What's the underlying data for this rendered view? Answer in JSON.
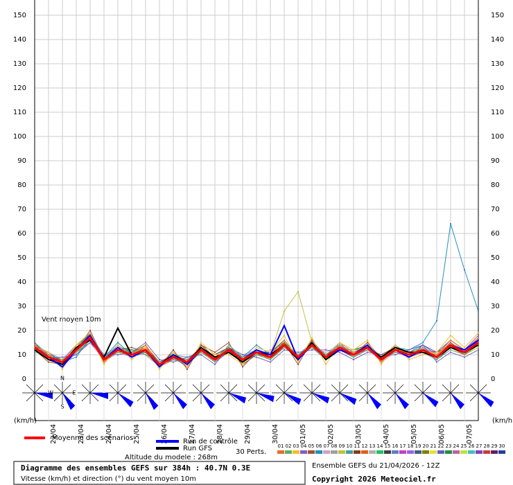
{
  "chart_data": {
    "type": "line",
    "annotation": "Vent moyen 10m",
    "y_unit_left": "(km/h)",
    "y_unit_right": "(km/h)",
    "perts_label": "30 Perts.",
    "altitude": "Altitude du modele : 268m",
    "title": "Diagramme des ensembles GEFS sur 384h : 40.7N 0.3E",
    "subtitle": "Vitesse (km/h) et direction (°) du vent moyen 10m",
    "run_info": "Ensemble GEFS du 21/04/2026 - 12Z",
    "copyright": "Copyright 2026 Meteociel.fr",
    "compass": [
      "N",
      "E",
      "S",
      "W"
    ],
    "wind_direction": [
      90,
      135,
      90,
      120,
      135,
      130,
      130,
      105,
      100,
      110,
      105,
      110,
      130,
      130,
      120,
      130,
      120
    ],
    "ylim": [
      0,
      150
    ],
    "yticks": [
      0,
      10,
      20,
      30,
      40,
      50,
      60,
      70,
      80,
      90,
      100,
      110,
      120,
      130,
      140,
      150
    ],
    "grid": true,
    "categories": [
      null,
      "22/04",
      null,
      "23/04",
      null,
      "24/04",
      null,
      "25/04",
      null,
      "26/04",
      null,
      "27/04",
      null,
      "28/04",
      null,
      "29/04",
      null,
      "30/04",
      null,
      "01/05",
      null,
      "02/05",
      null,
      "03/05",
      null,
      "04/05",
      null,
      "05/05",
      null,
      "06/05",
      null,
      "07/05",
      null
    ],
    "series": [
      {
        "name": "Moyenne des scénarios",
        "color": "#ff0000",
        "values": [
          13,
          9,
          7,
          12,
          17,
          8,
          12,
          10,
          12,
          6,
          9,
          7,
          12,
          8,
          12,
          8,
          11,
          9,
          14,
          9,
          14,
          9,
          13,
          10,
          13,
          8,
          12,
          10,
          12,
          9,
          14,
          11,
          15
        ]
      },
      {
        "name": "Run de contrôle",
        "color": "#0000ff",
        "values": [
          13,
          9,
          5,
          12,
          18,
          8,
          13,
          9,
          12,
          5,
          10,
          6,
          12,
          8,
          12,
          8,
          12,
          10,
          22,
          8,
          14,
          9,
          12,
          10,
          14,
          8,
          12,
          9,
          12,
          9,
          14,
          12,
          16
        ]
      },
      {
        "name": "Run GFS",
        "color": "#000000",
        "values": [
          12,
          8,
          6,
          13,
          16,
          9,
          21,
          10,
          12,
          6,
          10,
          7,
          13,
          9,
          11,
          7,
          11,
          10,
          14,
          8,
          15,
          8,
          12,
          10,
          13,
          9,
          13,
          11,
          11,
          9,
          13,
          11,
          14
        ]
      },
      {
        "name": "01",
        "color": "#e07030",
        "values": [
          14,
          10,
          5,
          13,
          18,
          7,
          13,
          9,
          14,
          5,
          10,
          6,
          13,
          9,
          11,
          7,
          12,
          10,
          16,
          8,
          15,
          8,
          12,
          11,
          14,
          7,
          13,
          9,
          11,
          10,
          16,
          12,
          17
        ]
      },
      {
        "name": "02",
        "color": "#60b060",
        "values": [
          12,
          8,
          8,
          11,
          16,
          9,
          11,
          12,
          10,
          7,
          8,
          8,
          11,
          7,
          14,
          9,
          10,
          8,
          13,
          10,
          13,
          10,
          14,
          9,
          12,
          9,
          11,
          11,
          13,
          8,
          12,
          10,
          14
        ]
      },
      {
        "name": "03",
        "color": "#f0c030",
        "values": [
          13,
          11,
          4,
          14,
          19,
          6,
          14,
          8,
          13,
          4,
          11,
          5,
          15,
          10,
          10,
          6,
          13,
          11,
          18,
          7,
          17,
          6,
          15,
          12,
          16,
          6,
          14,
          8,
          10,
          11,
          18,
          13,
          19
        ]
      },
      {
        "name": "04",
        "color": "#8060c0",
        "values": [
          15,
          9,
          9,
          10,
          15,
          10,
          10,
          11,
          15,
          8,
          7,
          9,
          10,
          6,
          13,
          10,
          9,
          7,
          12,
          11,
          12,
          12,
          11,
          8,
          11,
          10,
          10,
          12,
          14,
          7,
          11,
          9,
          12
        ]
      },
      {
        "name": "05",
        "color": "#a05030",
        "values": [
          12,
          7,
          6,
          12,
          20,
          8,
          12,
          13,
          11,
          5,
          12,
          4,
          14,
          11,
          15,
          5,
          11,
          9,
          15,
          6,
          16,
          9,
          13,
          10,
          15,
          8,
          12,
          10,
          12,
          9,
          15,
          10,
          16
        ]
      },
      {
        "name": "06",
        "color": "#2090c0",
        "values": [
          13,
          10,
          7,
          9,
          17,
          9,
          15,
          10,
          12,
          7,
          8,
          7,
          12,
          8,
          11,
          9,
          14,
          10,
          14,
          9,
          14,
          8,
          12,
          11,
          13,
          9,
          13,
          12,
          15,
          24,
          64,
          45,
          28
        ]
      },
      {
        "name": "07",
        "color": "#d0a0c0",
        "values": [
          14,
          11,
          8,
          13,
          16,
          7,
          11,
          9,
          13,
          6,
          10,
          8,
          11,
          9,
          12,
          8,
          10,
          12,
          13,
          10,
          13,
          11,
          14,
          9,
          14,
          7,
          11,
          9,
          13,
          10,
          13,
          12,
          14
        ]
      },
      {
        "name": "08",
        "color": "#a0a0a0",
        "values": [
          12,
          9,
          6,
          11,
          18,
          10,
          13,
          11,
          10,
          5,
          9,
          6,
          13,
          7,
          13,
          10,
          12,
          8,
          16,
          8,
          14,
          10,
          15,
          11,
          12,
          8,
          14,
          10,
          11,
          8,
          14,
          11,
          16
        ]
      },
      {
        "name": "09",
        "color": "#c0c040",
        "values": [
          13,
          8,
          7,
          14,
          17,
          8,
          12,
          10,
          14,
          7,
          8,
          7,
          12,
          10,
          11,
          7,
          11,
          10,
          28,
          36,
          15,
          9,
          12,
          10,
          13,
          9,
          12,
          11,
          12,
          10,
          15,
          10,
          13
        ]
      },
      {
        "name": "10",
        "color": "#40a0a0",
        "values": [
          11,
          10,
          5,
          12,
          16,
          9,
          13,
          12,
          11,
          6,
          10,
          9,
          11,
          8,
          12,
          9,
          12,
          9,
          14,
          10,
          13,
          8,
          13,
          10,
          14,
          8,
          12,
          10,
          13,
          9,
          13,
          11,
          15
        ]
      },
      {
        "name": "11",
        "color": "#804020",
        "values": [
          14,
          9,
          8,
          11,
          19,
          7,
          11,
          9,
          13,
          7,
          9,
          5,
          14,
          9,
          13,
          6,
          10,
          11,
          15,
          8,
          15,
          10,
          12,
          9,
          12,
          10,
          13,
          9,
          12,
          11,
          14,
          12,
          16
        ]
      },
      {
        "name": "12",
        "color": "#e06020",
        "values": [
          13,
          10,
          6,
          13,
          17,
          8,
          12,
          11,
          12,
          5,
          8,
          7,
          12,
          7,
          12,
          9,
          11,
          8,
          13,
          9,
          14,
          9,
          14,
          11,
          13,
          7,
          11,
          10,
          11,
          9,
          13,
          10,
          14
        ]
      },
      {
        "name": "13",
        "color": "#b0b0b0",
        "values": [
          12,
          8,
          7,
          12,
          18,
          9,
          14,
          10,
          11,
          6,
          10,
          8,
          13,
          9,
          11,
          8,
          12,
          10,
          14,
          10,
          13,
          8,
          13,
          10,
          15,
          9,
          12,
          11,
          12,
          8,
          15,
          11,
          17
        ]
      },
      {
        "name": "14",
        "color": "#20c060",
        "values": [
          15,
          10,
          8,
          10,
          16,
          8,
          11,
          12,
          12,
          7,
          9,
          6,
          11,
          8,
          12,
          7,
          10,
          9,
          15,
          9,
          15,
          9,
          12,
          12,
          13,
          8,
          14,
          10,
          13,
          10,
          14,
          12,
          15
        ]
      },
      {
        "name": "15",
        "color": "#404040",
        "values": [
          13,
          9,
          6,
          13,
          18,
          7,
          12,
          9,
          13,
          6,
          8,
          7,
          12,
          10,
          13,
          8,
          11,
          10,
          14,
          8,
          14,
          10,
          13,
          9,
          14,
          9,
          12,
          9,
          12,
          9,
          13,
          11,
          14
        ]
      },
      {
        "name": "16",
        "color": "#6080c0",
        "values": [
          12,
          11,
          7,
          12,
          17,
          9,
          13,
          11,
          11,
          5,
          9,
          8,
          13,
          7,
          11,
          9,
          12,
          8,
          13,
          10,
          13,
          9,
          14,
          10,
          12,
          8,
          13,
          11,
          14,
          10,
          15,
          10,
          16
        ]
      },
      {
        "name": "17",
        "color": "#c040c0",
        "values": [
          14,
          9,
          5,
          11,
          15,
          8,
          12,
          10,
          13,
          7,
          10,
          6,
          12,
          9,
          12,
          7,
          11,
          9,
          15,
          9,
          14,
          8,
          12,
          11,
          13,
          8,
          12,
          10,
          12,
          9,
          14,
          11,
          15
        ]
      },
      {
        "name": "18",
        "color": "#a060e0",
        "values": [
          13,
          10,
          8,
          14,
          19,
          7,
          11,
          12,
          12,
          6,
          9,
          7,
          11,
          8,
          13,
          9,
          10,
          10,
          14,
          8,
          16,
          9,
          13,
          9,
          14,
          9,
          11,
          9,
          13,
          10,
          16,
          12,
          18
        ]
      },
      {
        "name": "19",
        "color": "#406080",
        "values": [
          12,
          8,
          6,
          12,
          17,
          10,
          12,
          9,
          11,
          7,
          8,
          8,
          12,
          9,
          12,
          8,
          12,
          9,
          13,
          10,
          13,
          10,
          14,
          10,
          13,
          7,
          13,
          11,
          11,
          8,
          13,
          10,
          14
        ]
      },
      {
        "name": "20",
        "color": "#808000",
        "values": [
          14,
          10,
          7,
          13,
          16,
          8,
          13,
          11,
          14,
          5,
          10,
          6,
          13,
          8,
          11,
          8,
          11,
          8,
          14,
          9,
          15,
          9,
          12,
          11,
          14,
          8,
          12,
          10,
          12,
          9,
          14,
          11,
          15
        ]
      },
      {
        "name": "21",
        "color": "#e0e040",
        "values": [
          13,
          9,
          8,
          11,
          18,
          9,
          11,
          10,
          12,
          6,
          9,
          7,
          12,
          7,
          13,
          9,
          12,
          10,
          15,
          8,
          14,
          8,
          14,
          9,
          12,
          9,
          14,
          9,
          13,
          10,
          15,
          12,
          16
        ]
      },
      {
        "name": "22",
        "color": "#6060c0",
        "values": [
          12,
          11,
          6,
          12,
          17,
          8,
          14,
          9,
          13,
          7,
          8,
          8,
          11,
          9,
          12,
          7,
          10,
          9,
          13,
          10,
          13,
          10,
          13,
          10,
          13,
          8,
          11,
          10,
          12,
          9,
          14,
          10,
          14
        ]
      },
      {
        "name": "23",
        "color": "#209040",
        "values": [
          15,
          8,
          7,
          13,
          19,
          7,
          12,
          12,
          11,
          6,
          11,
          6,
          13,
          8,
          12,
          8,
          11,
          11,
          16,
          9,
          15,
          9,
          12,
          12,
          14,
          9,
          13,
          11,
          11,
          8,
          13,
          11,
          16
        ]
      },
      {
        "name": "24",
        "color": "#c060a0",
        "values": [
          13,
          10,
          5,
          12,
          16,
          8,
          11,
          10,
          12,
          5,
          9,
          7,
          12,
          10,
          13,
          9,
          12,
          8,
          14,
          8,
          14,
          8,
          15,
          9,
          13,
          8,
          12,
          9,
          12,
          10,
          15,
          12,
          15
        ]
      },
      {
        "name": "25",
        "color": "#c0e040",
        "values": [
          12,
          9,
          8,
          11,
          17,
          9,
          13,
          11,
          13,
          7,
          10,
          8,
          11,
          8,
          11,
          7,
          11,
          10,
          13,
          9,
          13,
          10,
          13,
          10,
          14,
          7,
          13,
          10,
          13,
          9,
          14,
          10,
          17
        ]
      },
      {
        "name": "26",
        "color": "#40c0c0",
        "values": [
          14,
          10,
          7,
          14,
          18,
          8,
          12,
          9,
          12,
          6,
          8,
          6,
          13,
          9,
          12,
          8,
          10,
          9,
          15,
          10,
          15,
          9,
          12,
          11,
          12,
          9,
          12,
          11,
          12,
          8,
          13,
          11,
          15
        ]
      },
      {
        "name": "27",
        "color": "#8040c0",
        "values": [
          13,
          8,
          6,
          12,
          17,
          7,
          12,
          11,
          11,
          5,
          9,
          7,
          12,
          7,
          13,
          9,
          12,
          9,
          14,
          8,
          14,
          8,
          14,
          10,
          13,
          8,
          13,
          9,
          14,
          11,
          16,
          12,
          16
        ]
      },
      {
        "name": "28",
        "color": "#c04040",
        "values": [
          12,
          11,
          7,
          13,
          16,
          9,
          11,
          10,
          13,
          7,
          10,
          8,
          11,
          8,
          11,
          8,
          11,
          10,
          13,
          9,
          13,
          9,
          13,
          9,
          14,
          9,
          11,
          10,
          11,
          9,
          14,
          10,
          14
        ]
      },
      {
        "name": "29",
        "color": "#602060",
        "values": [
          14,
          9,
          8,
          12,
          18,
          8,
          13,
          12,
          12,
          6,
          9,
          6,
          12,
          9,
          12,
          7,
          12,
          8,
          15,
          9,
          15,
          10,
          12,
          11,
          13,
          8,
          12,
          10,
          13,
          10,
          15,
          11,
          16
        ]
      },
      {
        "name": "30",
        "color": "#2040a0",
        "values": [
          13,
          10,
          6,
          11,
          17,
          8,
          12,
          10,
          11,
          6,
          8,
          7,
          13,
          8,
          13,
          8,
          11,
          9,
          14,
          10,
          14,
          9,
          13,
          10,
          13,
          9,
          14,
          10,
          12,
          9,
          14,
          12,
          15
        ]
      }
    ]
  }
}
